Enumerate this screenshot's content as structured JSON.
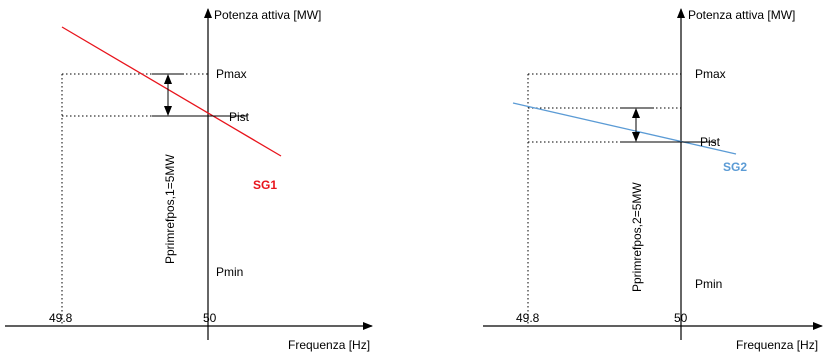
{
  "colors": {
    "sg1_line": "#e8141c",
    "sg2_line": "#5b9bd5",
    "axis": "#000000"
  },
  "diagrams": [
    {
      "y_axis_label": "Potenza attiva [MW]",
      "x_axis_label": "Frequenza [Hz]",
      "x_tick_min": "49.8",
      "x_tick_center": "50",
      "pmax_label": "Pmax",
      "pist_label": "Pist",
      "pmin_label": "Pmin",
      "delta_label": "Pprimrefpos,1=5MW",
      "curve_label": "SG1"
    },
    {
      "y_axis_label": "Potenza attiva [MW]",
      "x_axis_label": "Frequenza [Hz]",
      "x_tick_min": "49.8",
      "x_tick_center": "50",
      "pmax_label": "Pmax",
      "pist_label": "Pist",
      "pmin_label": "Pmin",
      "delta_label": "Pprimrefpos,2=5MW",
      "curve_label": "SG2"
    }
  ]
}
